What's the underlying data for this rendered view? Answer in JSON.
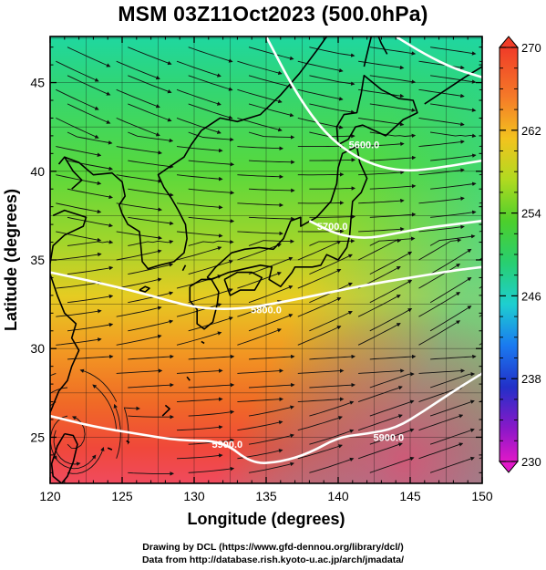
{
  "title": "MSM 03Z11Oct2023 (500.0hPa)",
  "xlabel": "Longitude (degrees)",
  "ylabel": "Latitude  (degrees)",
  "credits": {
    "line1": "Drawing by DCL (https://www.gfd-dennou.org/library/dcl/)",
    "line2": "Data from http://database.rish.kyoto-u.ac.jp/arch/jmadata/"
  },
  "chart_data": {
    "type": "heatmap",
    "x_ticks": [
      "120",
      "125",
      "130",
      "135",
      "140",
      "145",
      "150"
    ],
    "y_ticks": [
      "25",
      "30",
      "35",
      "40",
      "45"
    ],
    "xlim": [
      120,
      150
    ],
    "ylim": [
      22.4,
      47.6
    ],
    "colorbar": {
      "ticks": [
        "270",
        "262",
        "254",
        "246",
        "238",
        "230"
      ],
      "range": [
        230,
        270
      ]
    },
    "contours": [
      {
        "label": "5900.0",
        "lon": [
          120,
          123,
          126,
          129,
          132,
          134,
          136,
          138,
          140,
          142,
          144,
          146,
          148,
          150
        ],
        "lat": [
          26.2,
          25.6,
          25.2,
          24.8,
          24.8,
          23.5,
          23.6,
          24.1,
          25.0,
          25.2,
          25.5,
          26.5,
          27.6,
          28.6
        ]
      },
      {
        "label": "5800.0",
        "lon": [
          120,
          124,
          127,
          130,
          133,
          136,
          139,
          142,
          145,
          148,
          150
        ],
        "lat": [
          34.3,
          33.6,
          33.0,
          32.3,
          32.2,
          32.6,
          33.1,
          33.6,
          34.0,
          34.4,
          34.6
        ]
      },
      {
        "label": "5700.0",
        "lon": [
          138,
          140,
          142,
          144,
          146,
          148,
          150
        ],
        "lat": [
          37.2,
          36.4,
          36.2,
          36.5,
          36.8,
          37.0,
          37.2
        ]
      },
      {
        "label": "5600.0",
        "lon": [
          135,
          137,
          139,
          141,
          143,
          145,
          147,
          150
        ],
        "lat": [
          47.6,
          44.5,
          42.2,
          40.9,
          40.2,
          40.0,
          40.2,
          40.6
        ]
      },
      {
        "label": "",
        "lon": [
          144,
          146,
          148,
          150
        ],
        "lat": [
          47.6,
          46.6,
          45.8,
          45.3
        ]
      }
    ],
    "contour_labels": [
      {
        "text": "5900.0",
        "lon": 132.3,
        "lat": 24.6
      },
      {
        "text": "5900.0",
        "lon": 143.5,
        "lat": 25.0
      },
      {
        "text": "5800.0",
        "lon": 135.0,
        "lat": 32.2
      },
      {
        "text": "5700.0",
        "lon": 139.6,
        "lat": 36.9
      },
      {
        "text": "5600.0",
        "lon": 141.8,
        "lat": 41.5
      }
    ]
  }
}
